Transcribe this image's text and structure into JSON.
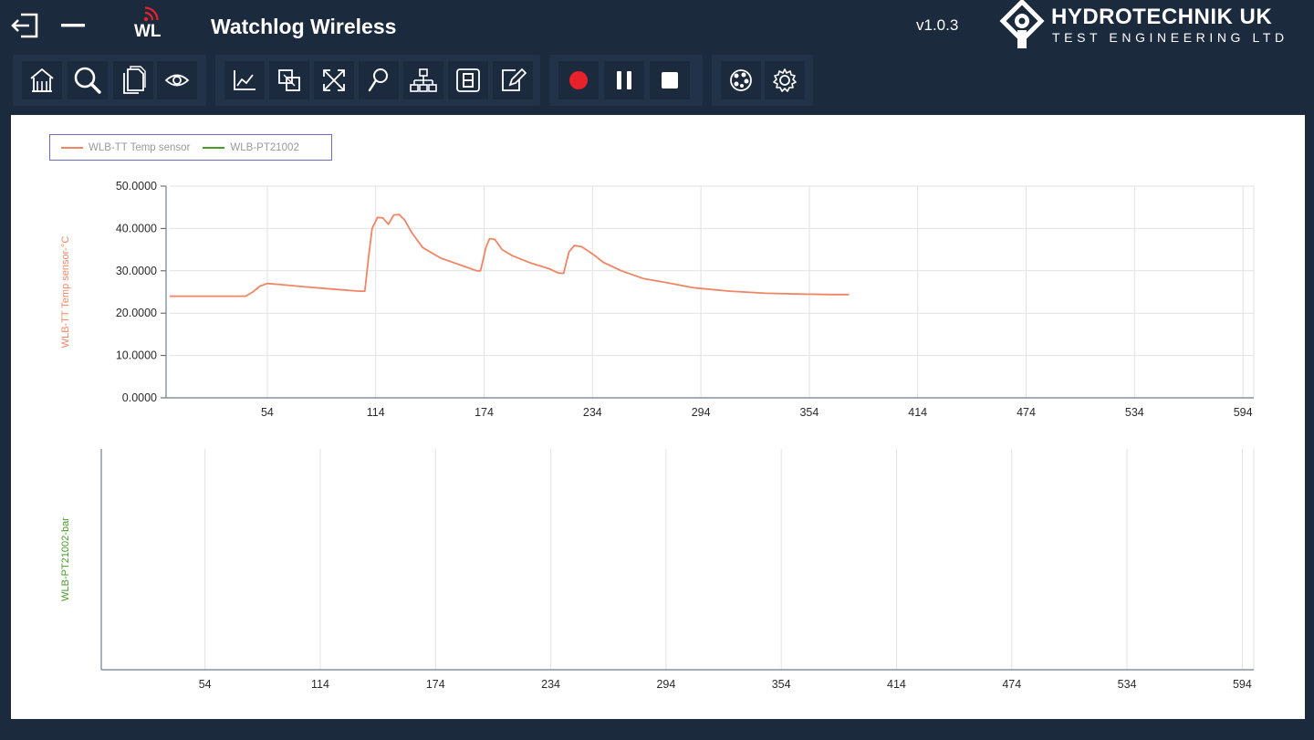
{
  "titlebar": {
    "app_title": "Watchlog Wireless",
    "app_logo_text": "WL",
    "version": "v1.0.3",
    "brand_name": "HYDROTECHNIK UK",
    "brand_sub": "TEST ENGINEERING LTD",
    "icons": [
      "logout-icon",
      "minimize-icon"
    ]
  },
  "toolbar": {
    "groups": [
      [
        "home-icon",
        "search-icon",
        "documents-icon",
        "eye-icon"
      ],
      [
        "line-chart-icon",
        "copy-icon",
        "cross-arrows-icon",
        "zoom-icon",
        "network-icon",
        "digital-display-icon",
        "edit-icon"
      ],
      [
        "record-icon",
        "pause-icon",
        "stop-icon"
      ],
      [
        "palette-icon",
        "gear-icon"
      ]
    ],
    "record_color": "#e8212a"
  },
  "legend": {
    "items": [
      {
        "label": "WLB-TT Temp sensor",
        "color": "#f08566"
      },
      {
        "label": "WLB-PT21002",
        "color": "#4a9a2a"
      }
    ]
  },
  "chart_data": [
    {
      "type": "line",
      "ylabel": "WLB-TT Temp sensor-°C",
      "ylabel_color": "#f08566",
      "ylim": [
        0,
        50
      ],
      "yticks": [
        "0.0000",
        "10.0000",
        "20.0000",
        "30.0000",
        "40.0000",
        "50.0000"
      ],
      "yticks_values": [
        0,
        10,
        20,
        30,
        40,
        50
      ],
      "xticks": [
        "54",
        "114",
        "174",
        "234",
        "294",
        "354",
        "414",
        "474",
        "534",
        "594"
      ],
      "xticks_values": [
        54,
        114,
        174,
        234,
        294,
        354,
        414,
        474,
        534,
        594
      ],
      "xlim": [
        0,
        600
      ],
      "grid": true,
      "series": [
        {
          "name": "WLB-TT Temp sensor",
          "color": "#f08566",
          "points": [
            [
              0,
              24.0
            ],
            [
              42,
              24.0
            ],
            [
              46,
              25.0
            ],
            [
              50,
              26.4
            ],
            [
              54,
              27.0
            ],
            [
              60,
              26.8
            ],
            [
              75,
              26.2
            ],
            [
              90,
              25.7
            ],
            [
              105,
              25.2
            ],
            [
              108,
              25.2
            ],
            [
              110,
              33.0
            ],
            [
              112,
              40.0
            ],
            [
              115,
              42.6
            ],
            [
              118,
              42.5
            ],
            [
              121,
              41.0
            ],
            [
              124,
              43.2
            ],
            [
              127,
              43.3
            ],
            [
              130,
              42.0
            ],
            [
              134,
              39.0
            ],
            [
              140,
              35.5
            ],
            [
              150,
              33.0
            ],
            [
              160,
              31.5
            ],
            [
              170,
              30.0
            ],
            [
              172,
              30.0
            ],
            [
              175,
              35.5
            ],
            [
              177,
              37.6
            ],
            [
              180,
              37.4
            ],
            [
              184,
              35.0
            ],
            [
              190,
              33.5
            ],
            [
              200,
              31.8
            ],
            [
              210,
              30.5
            ],
            [
              215,
              29.5
            ],
            [
              218,
              29.4
            ],
            [
              221,
              34.5
            ],
            [
              224,
              36.0
            ],
            [
              228,
              35.7
            ],
            [
              234,
              34.0
            ],
            [
              240,
              32.0
            ],
            [
              250,
              30.0
            ],
            [
              262,
              28.2
            ],
            [
              275,
              27.2
            ],
            [
              290,
              26.0
            ],
            [
              310,
              25.2
            ],
            [
              330,
              24.7
            ],
            [
              350,
              24.5
            ],
            [
              366,
              24.4
            ],
            [
              376,
              24.4
            ]
          ]
        }
      ]
    },
    {
      "type": "line",
      "ylabel": "WLB-PT21002-bar",
      "ylabel_color": "#4a9a2a",
      "xticks": [
        "54",
        "114",
        "174",
        "234",
        "294",
        "354",
        "414",
        "474",
        "534",
        "594"
      ],
      "xticks_values": [
        54,
        114,
        174,
        234,
        294,
        354,
        414,
        474,
        534,
        594
      ],
      "xlim": [
        0,
        600
      ],
      "grid": true,
      "series": [
        {
          "name": "WLB-PT21002",
          "color": "#4a9a2a",
          "points": []
        }
      ]
    }
  ]
}
